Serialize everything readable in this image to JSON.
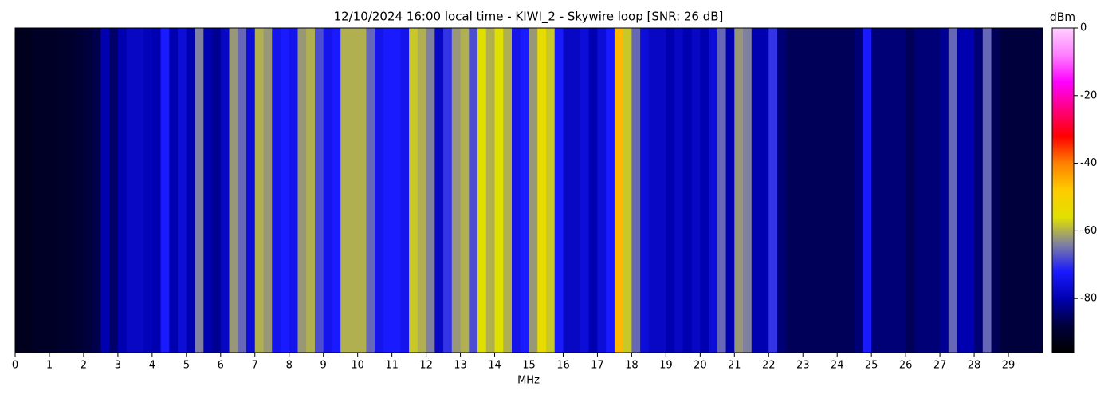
{
  "chart_data": {
    "type": "heatmap",
    "title": "12/10/2024 16:00 local time - KIWI_2 - Skywire loop [SNR: 26 dB]",
    "x_label": "MHz",
    "colorbar_label": "dBm",
    "x": [
      0,
      0.25,
      0.5,
      0.75,
      1,
      1.25,
      1.5,
      1.75,
      2,
      2.25,
      2.5,
      2.75,
      3,
      3.25,
      3.5,
      3.75,
      4,
      4.25,
      4.5,
      4.75,
      5,
      5.25,
      5.5,
      5.75,
      6,
      6.25,
      6.5,
      6.75,
      7,
      7.25,
      7.5,
      7.75,
      8,
      8.25,
      8.5,
      8.75,
      9,
      9.25,
      9.5,
      9.75,
      10,
      10.25,
      10.5,
      10.75,
      11,
      11.25,
      11.5,
      11.75,
      12,
      12.25,
      12.5,
      12.75,
      13,
      13.25,
      13.5,
      13.75,
      14,
      14.25,
      14.5,
      14.75,
      15,
      15.25,
      15.5,
      15.75,
      16,
      16.25,
      16.5,
      16.75,
      17,
      17.25,
      17.5,
      17.75,
      18,
      18.25,
      18.5,
      18.75,
      19,
      19.25,
      19.5,
      19.75,
      20,
      20.25,
      20.5,
      20.75,
      21,
      21.25,
      21.5,
      21.75,
      22,
      22.25,
      22.5,
      22.75,
      23,
      23.25,
      23.5,
      23.75,
      24,
      24.25,
      24.5,
      24.75,
      25,
      25.25,
      25.5,
      25.75,
      26,
      26.25,
      26.5,
      26.75,
      27,
      27.25,
      27.5,
      27.75,
      28,
      28.25,
      28.5,
      28.75,
      29,
      29.25,
      29.5,
      29.75
    ],
    "values": [
      -92,
      -92,
      -91,
      -91,
      -91,
      -90,
      -90,
      -89,
      -88,
      -87,
      -80,
      -85,
      -80,
      -78,
      -78,
      -79,
      -80,
      -72,
      -80,
      -76,
      -80,
      -64,
      -80,
      -82,
      -78,
      -62,
      -66,
      -76,
      -60,
      -62,
      -74,
      -72,
      -74,
      -62,
      -60,
      -68,
      -74,
      -72,
      -60,
      -60,
      -60,
      -66,
      -74,
      -72,
      -72,
      -74,
      -58,
      -60,
      -64,
      -78,
      -70,
      -62,
      -60,
      -68,
      -56,
      -60,
      -56,
      -60,
      -74,
      -72,
      -62,
      -54,
      -58,
      -72,
      -78,
      -78,
      -76,
      -80,
      -76,
      -72,
      -46,
      -58,
      -66,
      -76,
      -78,
      -78,
      -80,
      -78,
      -80,
      -78,
      -80,
      -76,
      -66,
      -80,
      -62,
      -64,
      -80,
      -80,
      -70,
      -84,
      -86,
      -86,
      -86,
      -86,
      -86,
      -86,
      -86,
      -86,
      -84,
      -72,
      -84,
      -84,
      -84,
      -84,
      -86,
      -84,
      -84,
      -84,
      -82,
      -66,
      -80,
      -80,
      -84,
      -66,
      -86,
      -88,
      -88,
      -88,
      -88,
      -88
    ],
    "xlim": [
      0,
      30
    ],
    "xticks": [
      0,
      1,
      2,
      3,
      4,
      5,
      6,
      7,
      8,
      9,
      10,
      11,
      12,
      13,
      14,
      15,
      16,
      17,
      18,
      19,
      20,
      21,
      22,
      23,
      24,
      25,
      26,
      27,
      28,
      29
    ],
    "zlim": [
      -96,
      0
    ],
    "zticks": [
      0,
      -20,
      -40,
      -60,
      -80
    ],
    "colormap": [
      "#000000",
      "#00003c",
      "#0000b0",
      "#1a1aff",
      "#8080a0",
      "#e0e000",
      "#ffcc00",
      "#ff8000",
      "#ff0000",
      "#ff0080",
      "#ff00ff",
      "#ff80ff",
      "#ffd0ff"
    ]
  }
}
